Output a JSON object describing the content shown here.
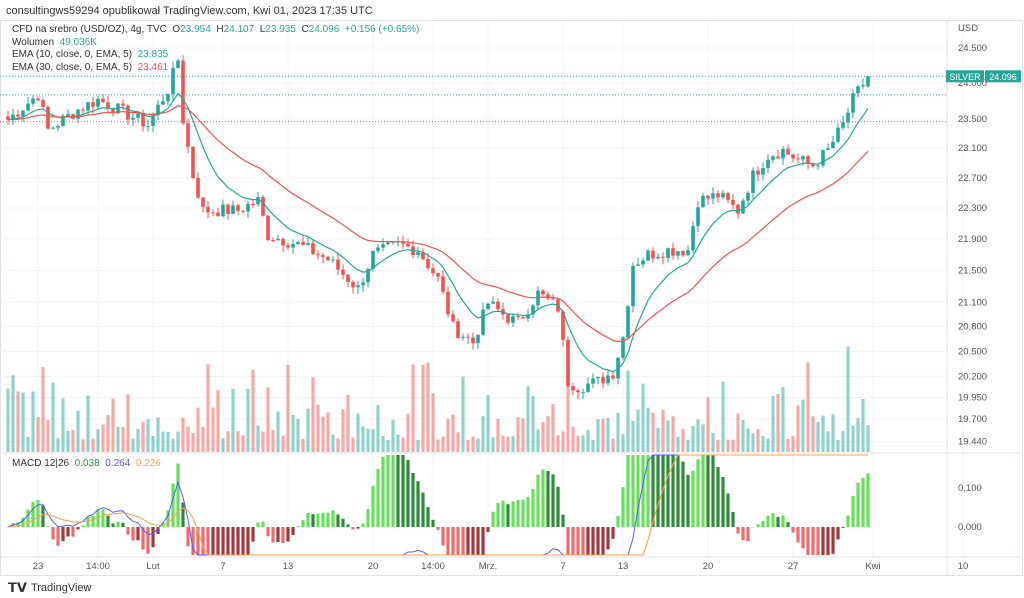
{
  "credit": "consultingws59294 opublikował TradingView.com, Kwi 01, 2023 17:35 UTC",
  "legend": {
    "symbol": "CFD na srebro (USD/OZ), 4g, TVC",
    "o_label": "O",
    "o": "23.954",
    "h_label": "H",
    "h": "24.107",
    "l_label": "L",
    "l": "23.935",
    "c_label": "C",
    "c": "24.096",
    "change": "+0.156 (+0.65%)",
    "volume_label": "Wolumen",
    "volume": "49.036K",
    "ema10_label": "EMA (10, close, 0, EMA, 5)",
    "ema10": "23.835",
    "ema30_label": "EMA (30, close, 0, EMA, 5)",
    "ema30": "23.461"
  },
  "macd": {
    "label": "MACD 12|26",
    "hist": "0.038",
    "macd": "0.264",
    "signal": "0.226"
  },
  "price_tag": {
    "symbol": "SILVER",
    "value": "24.096"
  },
  "brand": "TradingView",
  "colors": {
    "up": "#26a69a",
    "down": "#ef5350",
    "ema10": "#26a69a",
    "ema30": "#ef5350",
    "macd": "#5b5bf0",
    "signal": "#f7a048"
  },
  "chart_data": {
    "type": "candlestick",
    "currency": "USD",
    "y_ticks": [
      24.5,
      24.0,
      23.5,
      23.1,
      22.7,
      22.3,
      21.9,
      21.5,
      21.1,
      20.8,
      20.5,
      20.2,
      19.95,
      19.7,
      19.44
    ],
    "y_tick_labels": [
      "24.500",
      "24.000",
      "23.500",
      "23.100",
      "22.700",
      "22.300",
      "21.900",
      "21.500",
      "21.100",
      "20.800",
      "20.500",
      "20.200",
      "19.950",
      "19.700",
      "19.440"
    ],
    "macd_ticks": [
      0.1,
      0.0
    ],
    "macd_tick_labels": [
      "0.100",
      "0.000"
    ],
    "x_ticks": [
      {
        "i": 6,
        "label": "23"
      },
      {
        "i": 18,
        "label": "14:00"
      },
      {
        "i": 29,
        "label": "Lut"
      },
      {
        "i": 43,
        "label": "7"
      },
      {
        "i": 56,
        "label": "13"
      },
      {
        "i": 73,
        "label": "20"
      },
      {
        "i": 85,
        "label": "14:00"
      },
      {
        "i": 96,
        "label": "Mrz."
      },
      {
        "i": 111,
        "label": "7"
      },
      {
        "i": 123,
        "label": "13"
      },
      {
        "i": 140,
        "label": "20"
      },
      {
        "i": 157,
        "label": "27"
      },
      {
        "i": 173,
        "label": "Kwi"
      },
      {
        "i": 191,
        "label": "10"
      }
    ],
    "close_waypoints": [
      [
        0,
        23.49
      ],
      [
        6,
        23.84
      ],
      [
        8,
        23.35
      ],
      [
        14,
        23.63
      ],
      [
        18,
        23.77
      ],
      [
        24,
        23.56
      ],
      [
        28,
        23.42
      ],
      [
        32,
        23.91
      ],
      [
        34,
        24.33
      ],
      [
        35,
        23.49
      ],
      [
        37,
        22.73
      ],
      [
        39,
        22.27
      ],
      [
        46,
        22.27
      ],
      [
        50,
        22.4
      ],
      [
        52,
        21.95
      ],
      [
        58,
        21.83
      ],
      [
        64,
        21.64
      ],
      [
        70,
        21.27
      ],
      [
        73,
        21.7
      ],
      [
        78,
        21.83
      ],
      [
        82,
        21.76
      ],
      [
        86,
        21.39
      ],
      [
        89,
        20.79
      ],
      [
        93,
        20.61
      ],
      [
        96,
        21.09
      ],
      [
        100,
        20.91
      ],
      [
        102,
        20.85
      ],
      [
        106,
        21.21
      ],
      [
        110,
        21.03
      ],
      [
        112,
        20.14
      ],
      [
        114,
        20.08
      ],
      [
        118,
        20.14
      ],
      [
        121,
        20.25
      ],
      [
        123,
        20.67
      ],
      [
        125,
        21.58
      ],
      [
        128,
        21.7
      ],
      [
        132,
        21.76
      ],
      [
        136,
        21.76
      ],
      [
        138,
        22.4
      ],
      [
        142,
        22.47
      ],
      [
        146,
        22.27
      ],
      [
        149,
        22.73
      ],
      [
        152,
        23.0
      ],
      [
        155,
        23.07
      ],
      [
        158,
        22.94
      ],
      [
        161,
        22.87
      ],
      [
        164,
        23.07
      ],
      [
        167,
        23.42
      ],
      [
        169,
        23.77
      ],
      [
        172,
        24.1
      ]
    ],
    "last": {
      "open": 23.954,
      "high": 24.107,
      "low": 23.935,
      "close": 24.096
    }
  }
}
